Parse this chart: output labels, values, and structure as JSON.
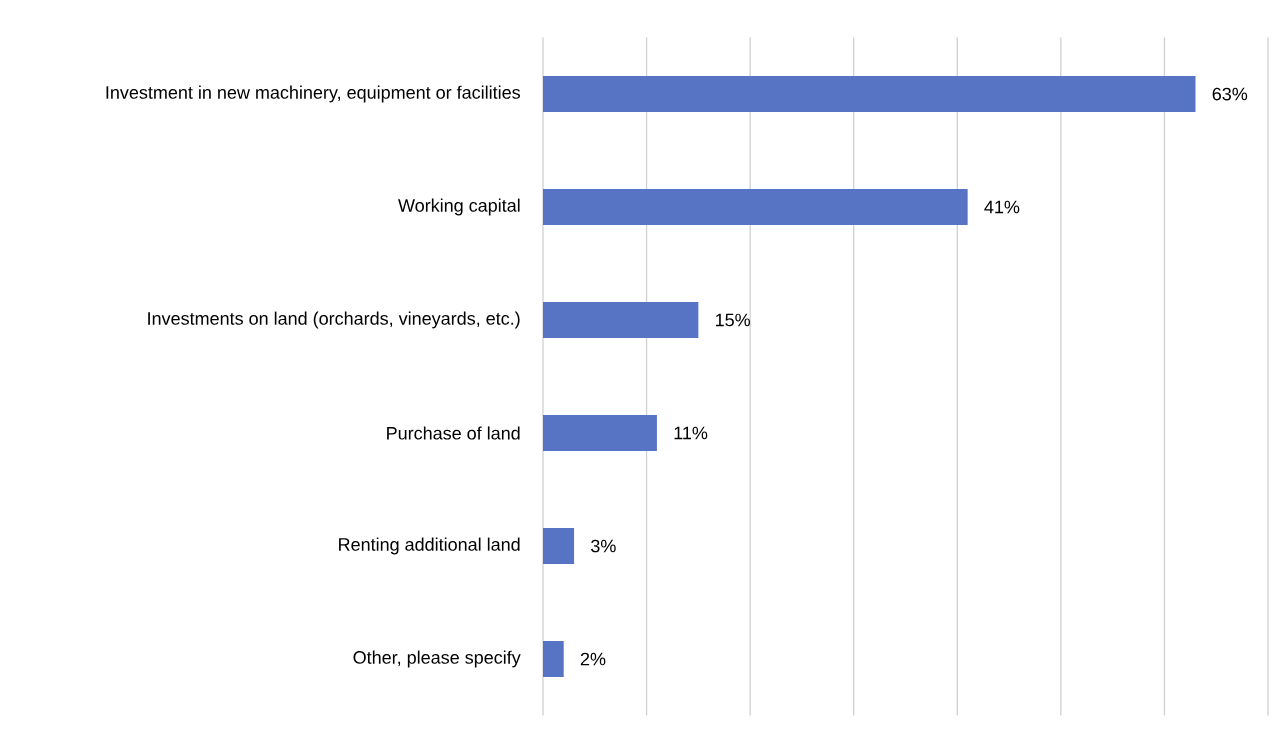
{
  "chart_data": {
    "type": "bar",
    "orientation": "horizontal",
    "categories": [
      "Investment in new machinery, equipment or facilities",
      "Working capital",
      "Investments on land (orchards, vineyards, etc.)",
      "Purchase of land",
      "Renting additional land",
      "Other, please specify"
    ],
    "values": [
      63,
      41,
      15,
      11,
      3,
      2
    ],
    "value_labels": [
      "63%",
      "41%",
      "15%",
      "11%",
      "3%",
      "2%"
    ],
    "color": "#5673c4",
    "xlim": [
      0,
      70
    ],
    "xticks": [
      {
        "value": 0,
        "label": null
      },
      {
        "value": 10,
        "label": null
      },
      {
        "value": 20,
        "label": null
      },
      {
        "value": 30,
        "label": null
      },
      {
        "value": 40,
        "label": null
      },
      {
        "value": 50,
        "label": null
      },
      {
        "value": 60,
        "label": null
      },
      {
        "value": 70,
        "label": null
      }
    ],
    "grid": "x",
    "tick_labels": "y"
  }
}
